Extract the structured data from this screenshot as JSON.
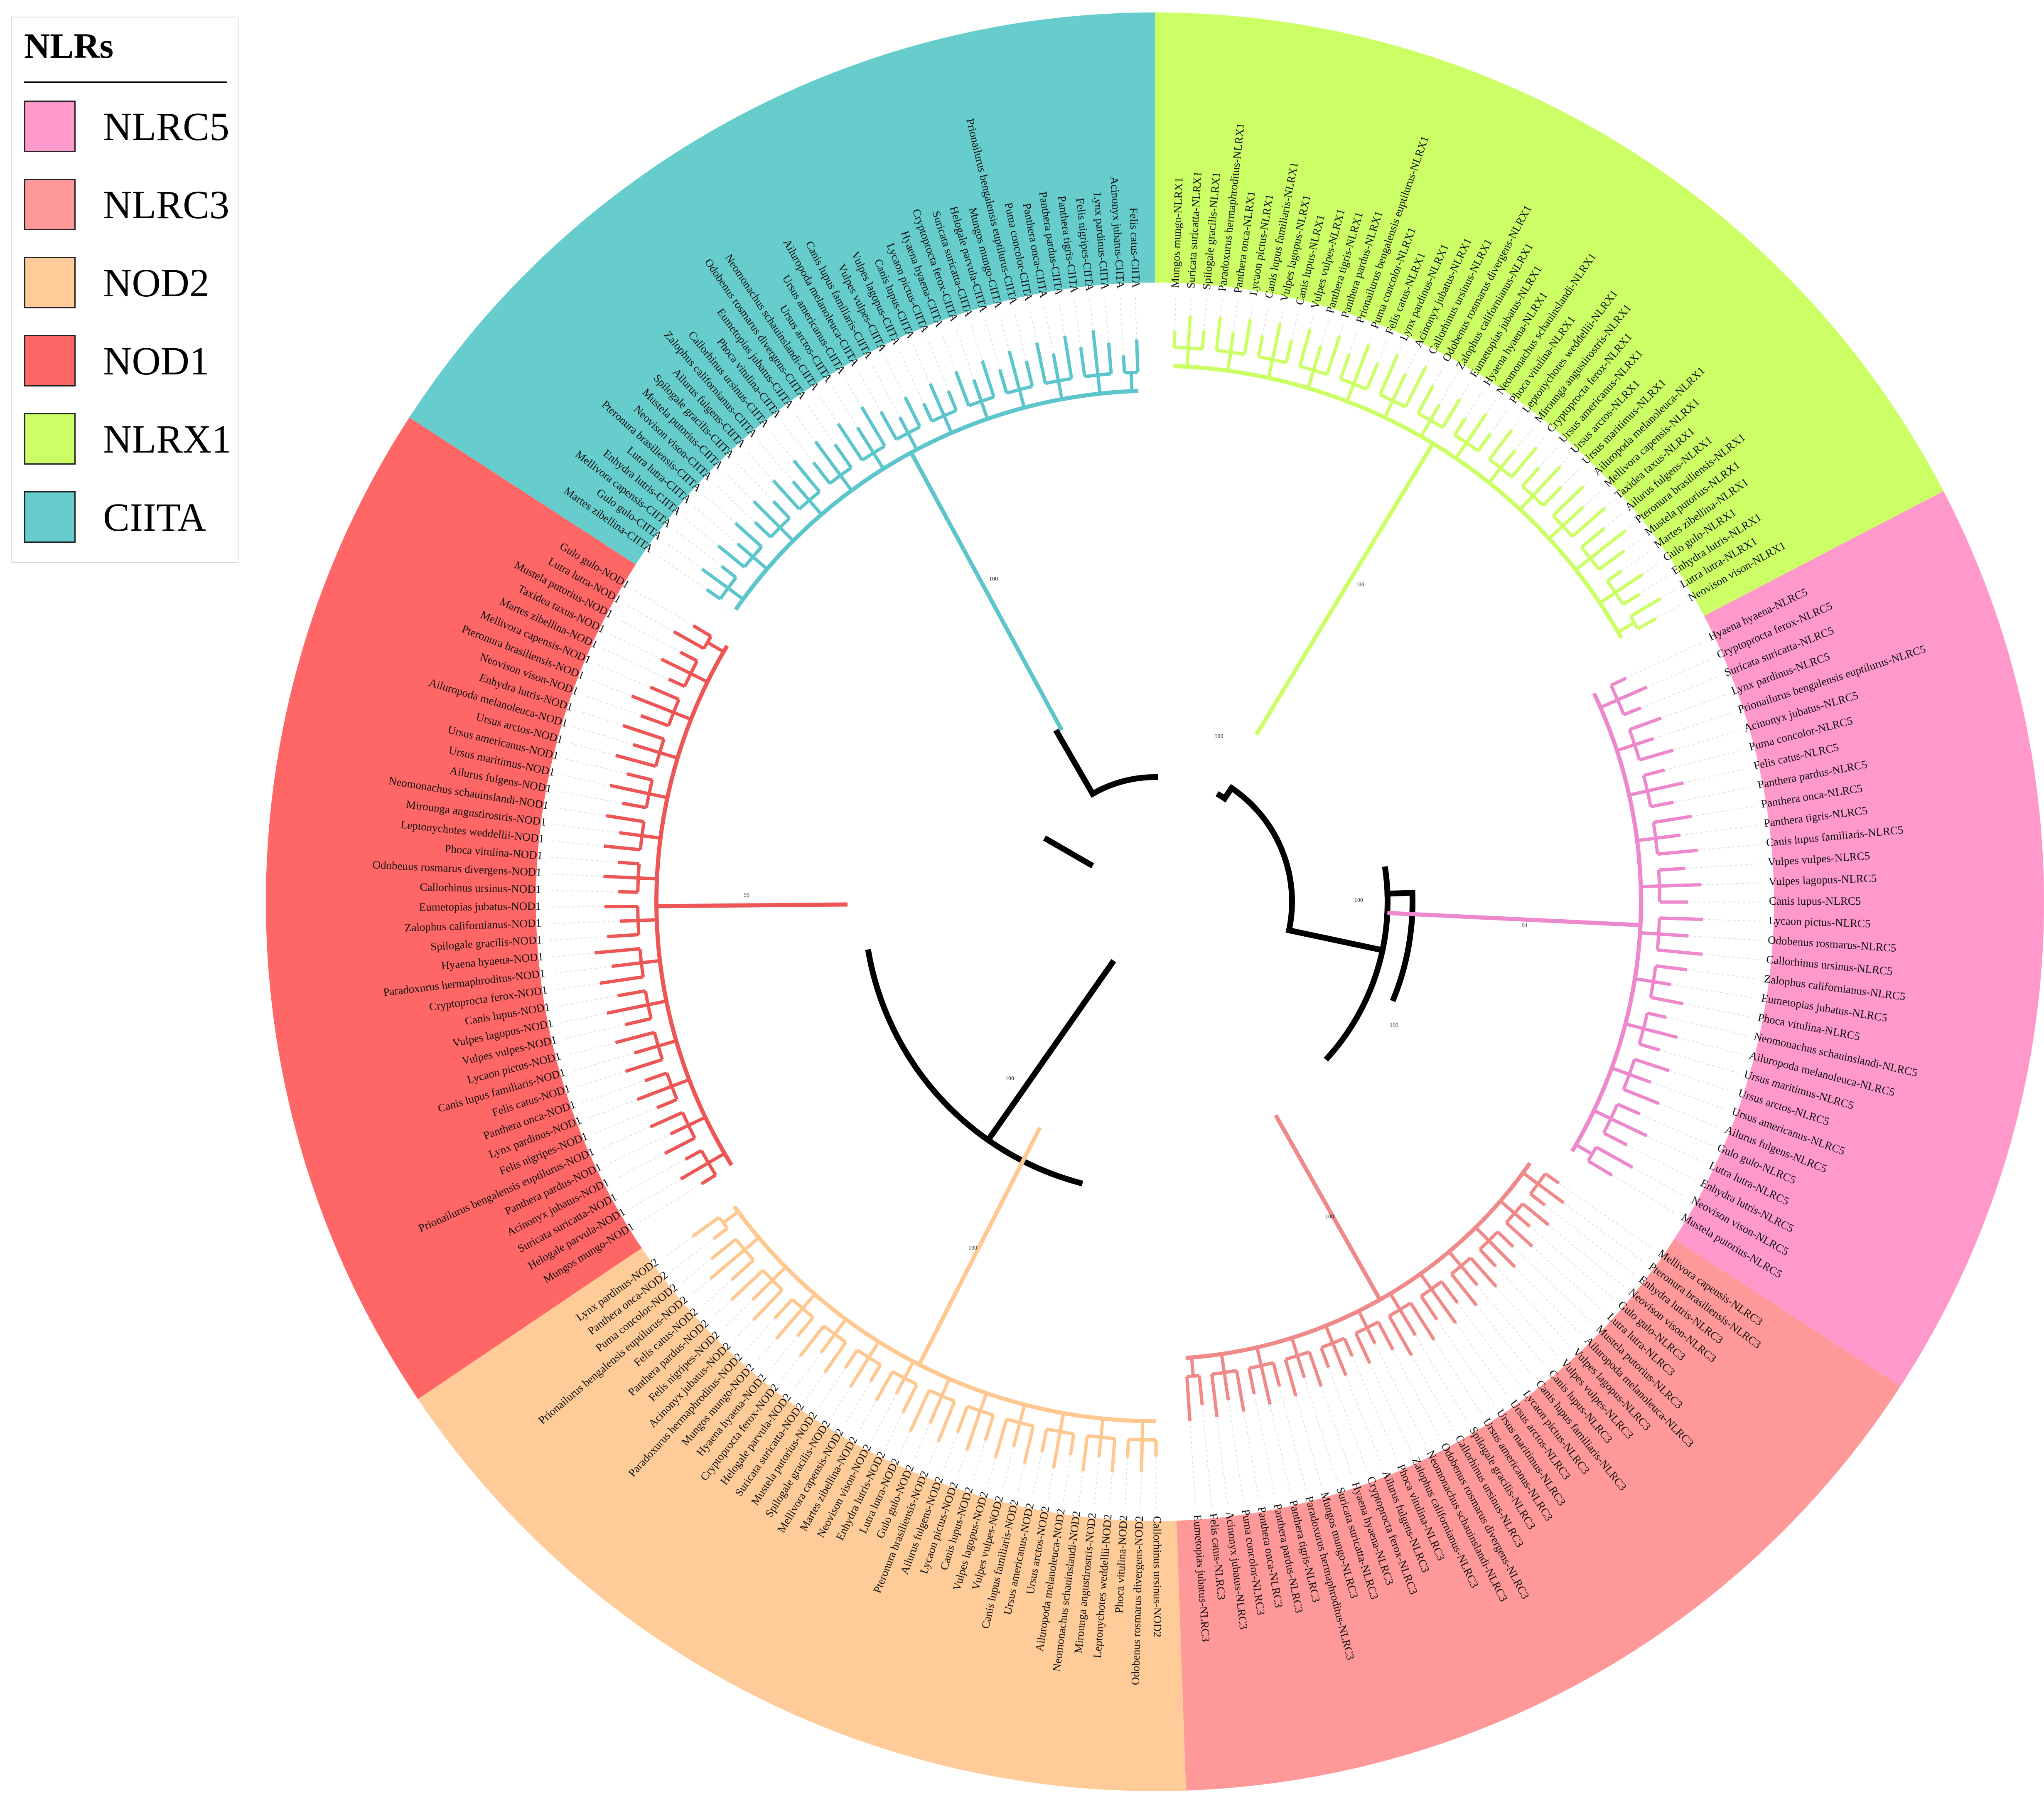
{
  "legend": {
    "title": "NLRs",
    "items": [
      {
        "label": "NLRC5",
        "color": "#ff99cc"
      },
      {
        "label": "NLRC3",
        "color": "#ff9999"
      },
      {
        "label": "NOD2",
        "color": "#ffcc99"
      },
      {
        "label": "NOD1",
        "color": "#ff6666"
      },
      {
        "label": "NLRX1",
        "color": "#ccff66"
      },
      {
        "label": "CIITA",
        "color": "#66cccc"
      }
    ]
  },
  "tree": {
    "backbone_color": "#000000",
    "backbone_bootstraps": [
      "100",
      "100",
      "100",
      "100"
    ],
    "clades": [
      {
        "name": "NLRX1",
        "color": "#ccff66",
        "line": "#ccff66",
        "stem_support": "100",
        "leaves": [
          "Mungos mungo-NLRX1",
          "Suricata suricatta-NLRX1",
          "Spilogale gracilis-NLRX1",
          "Paradoxurus hermaphroditus-NLRX1",
          "Panthera onca-NLRX1",
          "Lycaon pictus-NLRX1",
          "Canis lupus familiaris-NLRX1",
          "Vulpes lagopus-NLRX1",
          "Canis lupus-NLRX1",
          "Vulpes vulpes-NLRX1",
          "Panthera tigris-NLRX1",
          "Panthera pardus-NLRX1",
          "Prionailurus bengalensis euptilurus-NLRX1",
          "Puma concolor-NLRX1",
          "Felis catus-NLRX1",
          "Lynx pardinus-NLRX1",
          "Acinonyx jubatus-NLRX1",
          "Callorhinus ursinus-NLRX1",
          "Odobenus rosmarus divergens-NLRX1",
          "Zalophus californianus-NLRX1",
          "Eumetopias jubatus-NLRX1",
          "Hyaena hyaena-NLRX1",
          "Neomonachus schauinslandi-NLRX1",
          "Phoca vitulina-NLRX1",
          "Leptonychotes weddellii-NLRX1",
          "Mirounga angustirostris-NLRX1",
          "Cryptoprocta ferox-NLRX1",
          "Ursus americanus-NLRX1",
          "Ursus arctos-NLRX1",
          "Ursus maritimus-NLRX1",
          "Ailuropoda melanoleuca-NLRX1",
          "Mellivora capensis-NLRX1",
          "Taxidea taxus-NLRX1",
          "Ailurus fulgens-NLRX1",
          "Pteronura brasiliensis-NLRX1",
          "Mustela putorius-NLRX1",
          "Martes zibellina-NLRX1",
          "Gulo gulo-NLRX1",
          "Enhydra lutris-NLRX1",
          "Lutra lutra-NLRX1",
          "Neovison vison-NLRX1"
        ]
      },
      {
        "name": "NLRC5",
        "color": "#ff99cc",
        "line": "#ee88cc",
        "stem_support": "94",
        "leaves": [
          "Hyaena hyaena-NLRC5",
          "Cryptoprocta ferox-NLRC5",
          "Suricata suricatta-NLRC5",
          "Lynx pardinus-NLRC5",
          "Prionailurus bengalensis euptilurus-NLRC5",
          "Acinonyx jubatus-NLRC5",
          "Puma concolor-NLRC5",
          "Felis catus-NLRC5",
          "Panthera pardus-NLRC5",
          "Panthera onca-NLRC5",
          "Panthera tigris-NLRC5",
          "Canis lupus familiaris-NLRC5",
          "Vulpes vulpes-NLRC5",
          "Vulpes lagopus-NLRC5",
          "Canis lupus-NLRC5",
          "Lycaon pictus-NLRC5",
          "Odobenus rosmarus-NLRC5",
          "Callorhinus ursinus-NLRC5",
          "Zalophus californianus-NLRC5",
          "Eumetopias jubatus-NLRC5",
          "Phoca vitulina-NLRC5",
          "Neomonachus schauinslandi-NLRC5",
          "Ailuropoda melanoleuca-NLRC5",
          "Ursus maritimus-NLRC5",
          "Ursus arctos-NLRC5",
          "Ursus americanus-NLRC5",
          "Ailurus fulgens-NLRC5",
          "Gulo gulo-NLRC5",
          "Lutra lutra-NLRC5",
          "Enhydra lutris-NLRC5",
          "Neovison vison-NLRC5",
          "Mustela putorius-NLRC5"
        ]
      },
      {
        "name": "NLRC3",
        "color": "#ff9999",
        "line": "#f08a8a",
        "stem_support": "100",
        "leaves": [
          "Mellivora capensis-NLRC3",
          "Pteronura brasiliensis-NLRC3",
          "Enhydra lutris-NLRC3",
          "Neovison vison-NLRC3",
          "Gulo gulo-NLRC3",
          "Lutra lutra-NLRC3",
          "Mustela putorius-NLRC3",
          "Ailuropoda melanoleuca-NLRC3",
          "Vulpes lagopus-NLRC3",
          "Vulpes vulpes-NLRC3",
          "Canis lupus-NLRC3",
          "Canis lupus familiaris-NLRC3",
          "Lycaon pictus-NLRC3",
          "Ursus arctos-NLRC3",
          "Ursus maritimus-NLRC3",
          "Ursus americanus-NLRC3",
          "Spilogale gracilis-NLRC3",
          "Callorhinus ursinus-NLRC3",
          "Odobenus rosmarus divergens-NLRC3",
          "Neomonachus schauinslandi-NLRC3",
          "Zalophus californianus-NLRC3",
          "Phoca vitulina-NLRC3",
          "Ailurus fulgens-NLRC3",
          "Cryptoprocta ferox-NLRC3",
          "Hyaena hyaena-NLRC3",
          "Suricata suricatta-NLRC3",
          "Mungos mungo-NLRC3",
          "Paradoxurus hermaphroditus-NLRC3",
          "Panthera tigris-NLRC3",
          "Panthera pardus-NLRC3",
          "Panthera onca-NLRC3",
          "Puma concolor-NLRC3",
          "Acinonyx jubatus-NLRC3",
          "Felis catus-NLRC3",
          "Eumetopias jubatus-NLRC3"
        ]
      },
      {
        "name": "NOD2",
        "color": "#ffcc99",
        "line": "#ffc890",
        "stem_support": "100",
        "leaves": [
          "Callorhinus ursinus-NOD2",
          "Odobenus rosmarus divergens-NOD2",
          "Phoca vitulina-NOD2",
          "Leptonychotes weddellii-NOD2",
          "Mirounga angustirostris-NOD2",
          "Neomonachus schauinslandi-NOD2",
          "Ailuropoda melanoleuca-NOD2",
          "Ursus arctos-NOD2",
          "Ursus americanus-NOD2",
          "Canis lupus familiaris-NOD2",
          "Vulpes vulpes-NOD2",
          "Vulpes lagopus-NOD2",
          "Canis lupus-NOD2",
          "Lycaon pictus-NOD2",
          "Ailurus fulgens-NOD2",
          "Pteronura brasiliensis-NOD2",
          "Gulo gulo-NOD2",
          "Lutra lutra-NOD2",
          "Enhydra lutris-NOD2",
          "Neovison vison-NOD2",
          "Martes zibellina-NOD2",
          "Mellivora capensis-NOD2",
          "Spilogale gracilis-NOD2",
          "Mustela putorius-NOD2",
          "Suricata suricatta-NOD2",
          "Helogale parvula-NOD2",
          "Cryptoprocta ferox-NOD2",
          "Hyaena hyaena-NOD2",
          "Mungos mungo-NOD2",
          "Paradoxurus hermaphroditus-NOD2",
          "Acinonyx jubatus-NOD2",
          "Felis nigripes-NOD2",
          "Panthera pardus-NOD2",
          "Felis catus-NOD2",
          "Prionailurus bengalensis euptilurus-NOD2",
          "Puma concolor-NOD2",
          "Panthera onca-NOD2",
          "Lynx pardinus-NOD2"
        ]
      },
      {
        "name": "NOD1",
        "color": "#ff6666",
        "line": "#ee5555",
        "stem_support": "99",
        "leaves": [
          "Mungos mungo-NOD1",
          "Helogale parvula-NOD1",
          "Suricata suricatta-NOD1",
          "Acinonyx jubatus-NOD1",
          "Panthera pardus-NOD1",
          "Prionailurus bengalensis euptilurus-NOD1",
          "Felis nigripes-NOD1",
          "Lynx pardinus-NOD1",
          "Panthera onca-NOD1",
          "Felis catus-NOD1",
          "Canis lupus familiaris-NOD1",
          "Lycaon pictus-NOD1",
          "Vulpes vulpes-NOD1",
          "Vulpes lagopus-NOD1",
          "Canis lupus-NOD1",
          "Cryptoprocta ferox-NOD1",
          "Paradoxurus hermaphroditus-NOD1",
          "Hyaena hyaena-NOD1",
          "Spilogale gracilis-NOD1",
          "Zalophus californianus-NOD1",
          "Eumetopias jubatus-NOD1",
          "Callorhinus ursinus-NOD1",
          "Odobenus rosmarus divergens-NOD1",
          "Phoca vitulina-NOD1",
          "Leptonychotes weddellii-NOD1",
          "Mirounga angustirostris-NOD1",
          "Neomonachus schauinslandi-NOD1",
          "Ailurus fulgens-NOD1",
          "Ursus maritimus-NOD1",
          "Ursus americanus-NOD1",
          "Ursus arctos-NOD1",
          "Ailuropoda melanoleuca-NOD1",
          "Enhydra lutris-NOD1",
          "Neovison vison-NOD1",
          "Pteronura brasiliensis-NOD1",
          "Mellivora capensis-NOD1",
          "Martes zibellina-NOD1",
          "Taxidea taxus-NOD1",
          "Mustela putorius-NOD1",
          "Lutra lutra-NOD1",
          "Gulo gulo-NOD1"
        ]
      },
      {
        "name": "CIITA",
        "color": "#66cccc",
        "line": "#5cc6cc",
        "stem_support": "100",
        "leaves": [
          "Martes zibellina-CIITA",
          "Gulo gulo-CIITA",
          "Mellivora capensis-CIITA",
          "Enhydra lutris-CIITA",
          "Lutra lutra-CIITA",
          "Pteronura brasiliensis-CIITA",
          "Neovison vison-CIITA",
          "Mustela putorius-CIITA",
          "Spilogale gracilis-CIITA",
          "Ailurus fulgens-CIITA",
          "Zalophus californianus-CIITA",
          "Callorhinus ursinus-CIITA",
          "Phoca vitulina-CIITA",
          "Eumetopias jubatus-CIITA",
          "Odobenus rosmarus divergens-CIITA",
          "Neomonachus schauinslandi-CIITA",
          "Ursus arctos-CIITA",
          "Ursus americanus-CIITA",
          "Ailuropoda melanoleuca-CIITA",
          "Canis lupus familiaris-CIITA",
          "Vulpes vulpes-CIITA",
          "Vulpes lagopus-CIITA",
          "Canis lupus-CIITA",
          "Lycaon pictus-CIITA",
          "Hyaena hyaena-CIITA",
          "Cryptoprocta ferox-CIITA",
          "Suricata suricatta-CIITA",
          "Helogale parvula-CIITA",
          "Mungos mungo-CIITA",
          "Prionailurus bengalensis euptilurus-CIITA",
          "Puma concolor-CIITA",
          "Panthera onca-CIITA",
          "Panthera pardus-CIITA",
          "Panthera tigris-CIITA",
          "Felis nigripes-CIITA",
          "Lynx pardinus-CIITA",
          "Acinonyx jubatus-CIITA",
          "Felis catus-CIITA"
        ]
      }
    ]
  }
}
